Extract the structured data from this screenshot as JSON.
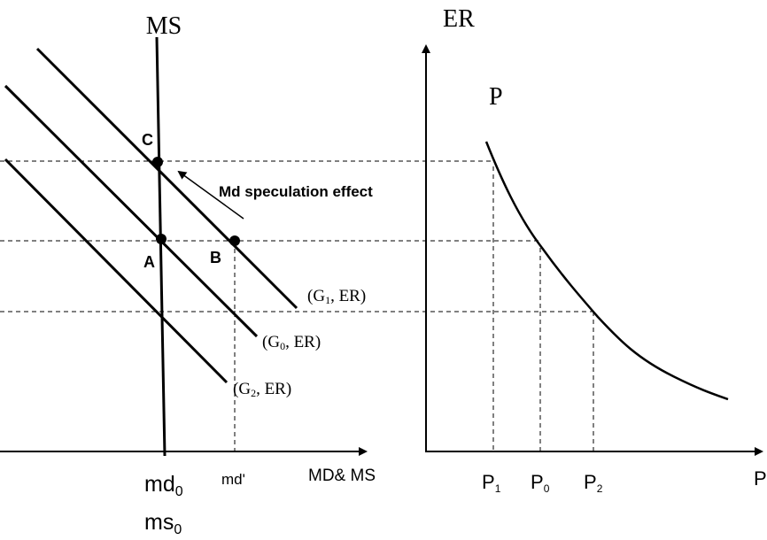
{
  "left_panel": {
    "money_supply_label": "MS",
    "points": {
      "C": "C",
      "A": "A",
      "B": "B"
    },
    "arrow_label": "Md speculation effect",
    "curves": [
      {
        "parts": [
          "(G",
          "1",
          ", ER)"
        ]
      },
      {
        "parts": [
          "(G",
          "0",
          ", ER)"
        ]
      },
      {
        "parts": [
          "(G",
          "2",
          ", ER)"
        ]
      }
    ],
    "x_labels": {
      "md0": [
        "md",
        "0"
      ],
      "md_prime": "md'",
      "axis": "MD& MS",
      "ms0": [
        "ms",
        "0"
      ]
    }
  },
  "right_panel": {
    "y_axis_label": "ER",
    "curve_label": "P",
    "x_ticks": [
      [
        "P",
        "1"
      ],
      [
        "P",
        "0"
      ],
      [
        "P",
        "2"
      ]
    ],
    "x_axis_label": "P"
  }
}
